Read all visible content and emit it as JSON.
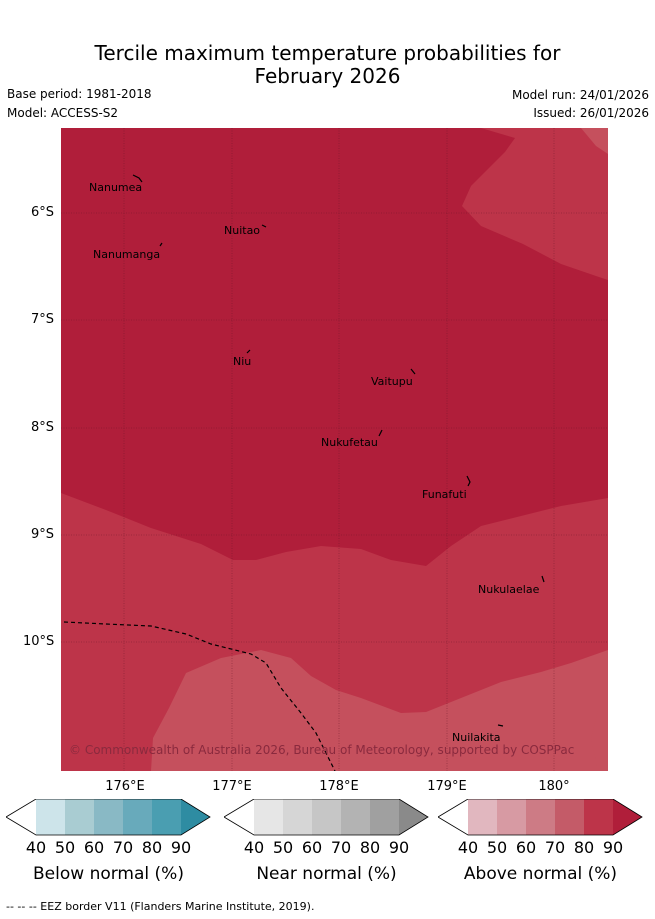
{
  "header": {
    "title_line1": "Tercile maximum temperature probabilities for",
    "title_line2": "February 2026",
    "base_period": "Base period: 1981-2018",
    "model": "Model: ACCESS-S2",
    "model_run": "Model run: 24/01/2026",
    "issued": "Issued: 26/01/2026"
  },
  "map": {
    "lat_labels": [
      "6°S",
      "7°S",
      "8°S",
      "9°S",
      "10°S"
    ],
    "lon_labels": [
      "176°E",
      "177°E",
      "178°E",
      "179°E",
      "180°"
    ],
    "places": [
      "Nanumea",
      "Nuitao",
      "Nanumanga",
      "Niu",
      "Vaitupu",
      "Nukufetau",
      "Funafuti",
      "Nukulaelae",
      "Nuilakita"
    ],
    "credit": "© Commonwealth of Australia 2026, Bureau of Meteorology, supported by COSPPac",
    "colors": {
      "above_90": "#b01e3a",
      "above_80": "#bd3449",
      "above_70": "#c5505d"
    }
  },
  "legend": {
    "ticks": [
      "40",
      "50",
      "60",
      "70",
      "80",
      "90"
    ],
    "below": {
      "label": "Below normal (%)",
      "colors": [
        "#ffffff",
        "#cde4ea",
        "#a9ccd2",
        "#89b9c5",
        "#68aabb",
        "#4a9eb1",
        "#2e8ca2"
      ]
    },
    "near": {
      "label": "Near normal (%)",
      "colors": [
        "#ffffff",
        "#e6e6e6",
        "#d6d6d6",
        "#c6c6c6",
        "#b3b3b3",
        "#a0a0a0",
        "#8a8a8a"
      ]
    },
    "above": {
      "label": "Above normal (%)",
      "colors": [
        "#ffffff",
        "#e1b7bf",
        "#d79aa3",
        "#cd7b85",
        "#c45b68",
        "#bd3449",
        "#b01e3a"
      ]
    }
  },
  "footer": {
    "note": "-- -- -- EEZ border V11 (Flanders Marine Institute, 2019)."
  }
}
